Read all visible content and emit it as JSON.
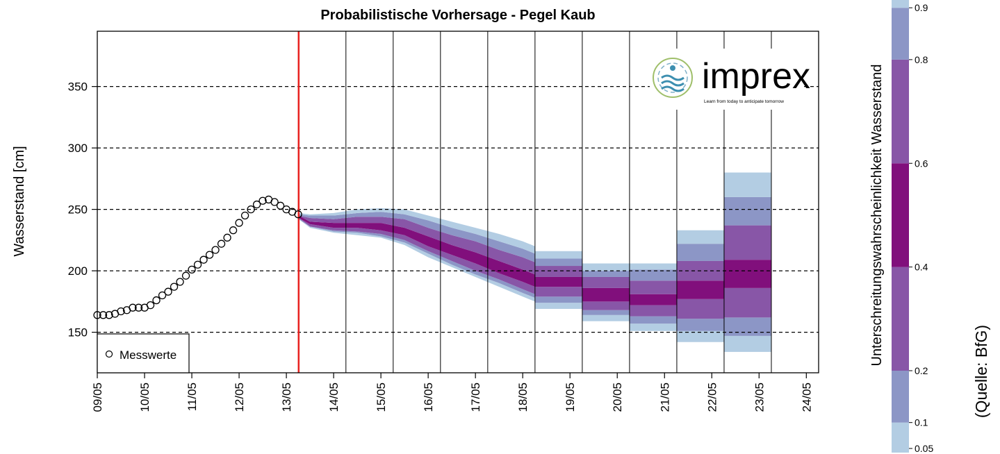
{
  "chart_data": {
    "type": "forecast",
    "title": "Probabilistische Vorhersage - Pegel  Kaub",
    "y_label": "Wasserstand [cm]",
    "ylim": [
      117,
      395
    ],
    "yticks": [
      150,
      200,
      250,
      300,
      350
    ],
    "xlim": [
      0,
      15.26
    ],
    "xticks": [
      {
        "value": 0,
        "label": "09/05"
      },
      {
        "value": 1,
        "label": "10/05"
      },
      {
        "value": 2,
        "label": "11/05"
      },
      {
        "value": 3,
        "label": "12/05"
      },
      {
        "value": 4,
        "label": "13/05"
      },
      {
        "value": 5,
        "label": "14/05"
      },
      {
        "value": 6,
        "label": "15/05"
      },
      {
        "value": 7,
        "label": "16/05"
      },
      {
        "value": 8,
        "label": "17/05"
      },
      {
        "value": 9,
        "label": "18/05"
      },
      {
        "value": 10,
        "label": "19/05"
      },
      {
        "value": 11,
        "label": "20/05"
      },
      {
        "value": 12,
        "label": "21/05"
      },
      {
        "value": 13,
        "label": "22/05"
      },
      {
        "value": 14,
        "label": "23/05"
      },
      {
        "value": 15,
        "label": "24/05"
      }
    ],
    "grid": true,
    "observed": {
      "name": "Messwerte",
      "color": "#000000",
      "x": [
        0,
        0.125,
        0.25,
        0.375,
        0.5,
        0.625,
        0.75,
        0.875,
        1,
        1.125,
        1.25,
        1.375,
        1.5,
        1.625,
        1.75,
        1.875,
        2,
        2.125,
        2.25,
        2.375,
        2.5,
        2.625,
        2.75,
        2.875,
        3,
        3.125,
        3.25,
        3.375,
        3.5,
        3.625,
        3.75,
        3.875,
        4,
        4.125,
        4.25
      ],
      "values": [
        164,
        164,
        164,
        165,
        167,
        168,
        170,
        170,
        170,
        172,
        176,
        180,
        183,
        187,
        191,
        196,
        201,
        205,
        209,
        213,
        217,
        222,
        227,
        233,
        239,
        245,
        250,
        254,
        257,
        258,
        256,
        253,
        250,
        248,
        246
      ]
    },
    "forecast_start": 4.26,
    "forecast_start_color": "#e8201e",
    "vlines": [
      5.26,
      6.26,
      7.26,
      8.26,
      9.26,
      10.26,
      11.26,
      12.26,
      13.26,
      14.26
    ],
    "band_colors": [
      "#b3cde3",
      "#8c96c6",
      "#8856a7",
      "#810f7c",
      "#8856a7",
      "#8c96c6",
      "#b3cde3"
    ],
    "forecast": {
      "x": [
        4.26,
        4.5,
        5,
        5.5,
        6,
        6.5,
        7,
        7.5,
        8,
        8.5,
        9,
        9.26
      ],
      "quantiles": [
        [
          242,
          235,
          231,
          229,
          227,
          221,
          211,
          203,
          195,
          187,
          179,
          175
        ],
        [
          242,
          236,
          232,
          231,
          228,
          223,
          214,
          205,
          197,
          190,
          182,
          178
        ],
        [
          243,
          236,
          233,
          232,
          230,
          225,
          216,
          208,
          200,
          193,
          185,
          181
        ],
        [
          243,
          238,
          235,
          235,
          233,
          229,
          220,
          213,
          206,
          198,
          191,
          187
        ],
        [
          245,
          240,
          239,
          239,
          239,
          235,
          228,
          221,
          215,
          208,
          201,
          197
        ],
        [
          245,
          243,
          242,
          244,
          244,
          242,
          235,
          229,
          224,
          217,
          211,
          207
        ],
        [
          246,
          245,
          245,
          247,
          248,
          246,
          241,
          235,
          230,
          224,
          218,
          214
        ],
        [
          247,
          246,
          247,
          250,
          251,
          250,
          245,
          240,
          235,
          230,
          224,
          220
        ]
      ]
    },
    "blocks": {
      "x_edges": [
        9.26,
        10.26,
        11.26,
        12.26,
        13.26,
        14.26
      ],
      "quantiles": [
        [
          169,
          159,
          151,
          142,
          134
        ],
        [
          174,
          164,
          157,
          151,
          147
        ],
        [
          179,
          168,
          163,
          161,
          162
        ],
        [
          187,
          175,
          172,
          177,
          186
        ],
        [
          195,
          186,
          181,
          192,
          209
        ],
        [
          204,
          195,
          192,
          208,
          237
        ],
        [
          210,
          200,
          201,
          222,
          260
        ],
        [
          216,
          206,
          206,
          233,
          280
        ]
      ]
    },
    "colorbar": {
      "title": "Unterschreitungswahrscheinlichkeit Wasserstand",
      "lim": [
        0.042,
        0.915
      ],
      "ticks": [
        0.05,
        0.1,
        0.2,
        0.4,
        0.6,
        0.8,
        0.9
      ]
    },
    "logo_text": "imprex",
    "logo_tagline": "Learn from today to anticipate tomorrow",
    "source": "(Quelle: BfG)"
  }
}
